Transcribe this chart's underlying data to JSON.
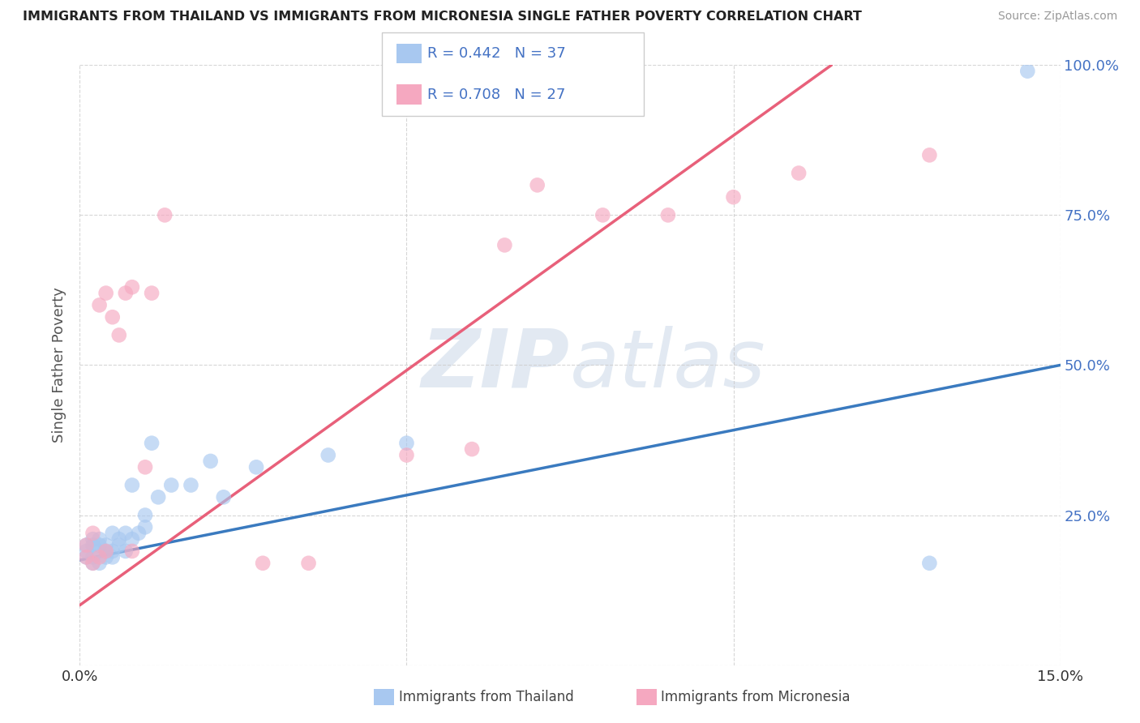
{
  "title": "IMMIGRANTS FROM THAILAND VS IMMIGRANTS FROM MICRONESIA SINGLE FATHER POVERTY CORRELATION CHART",
  "source": "Source: ZipAtlas.com",
  "ylabel": "Single Father Poverty",
  "legend_label1": "Immigrants from Thailand",
  "legend_label2": "Immigrants from Micronesia",
  "r1": 0.442,
  "n1": 37,
  "r2": 0.708,
  "n2": 27,
  "xlim": [
    0,
    0.15
  ],
  "ylim": [
    0,
    1.0
  ],
  "xticks": [
    0.0,
    0.05,
    0.1,
    0.15
  ],
  "yticks": [
    0.0,
    0.25,
    0.5,
    0.75,
    1.0
  ],
  "color_thailand": "#a8c8f0",
  "color_micronesia": "#f5a8c0",
  "color_line_thailand": "#3a7abf",
  "color_line_micronesia": "#e8607a",
  "color_r_value": "#4472C4",
  "background_color": "#ffffff",
  "thailand_x": [
    0.001,
    0.001,
    0.001,
    0.002,
    0.002,
    0.002,
    0.002,
    0.003,
    0.003,
    0.003,
    0.003,
    0.004,
    0.004,
    0.004,
    0.005,
    0.005,
    0.005,
    0.006,
    0.006,
    0.007,
    0.007,
    0.008,
    0.008,
    0.009,
    0.01,
    0.01,
    0.011,
    0.012,
    0.014,
    0.017,
    0.02,
    0.022,
    0.027,
    0.038,
    0.05,
    0.13,
    0.145
  ],
  "thailand_y": [
    0.18,
    0.19,
    0.2,
    0.17,
    0.18,
    0.2,
    0.21,
    0.17,
    0.19,
    0.2,
    0.21,
    0.18,
    0.19,
    0.2,
    0.18,
    0.19,
    0.22,
    0.2,
    0.21,
    0.19,
    0.22,
    0.21,
    0.3,
    0.22,
    0.23,
    0.25,
    0.37,
    0.28,
    0.3,
    0.3,
    0.34,
    0.28,
    0.33,
    0.35,
    0.37,
    0.17,
    0.99
  ],
  "micronesia_x": [
    0.001,
    0.001,
    0.002,
    0.002,
    0.003,
    0.003,
    0.004,
    0.004,
    0.005,
    0.006,
    0.007,
    0.008,
    0.008,
    0.01,
    0.011,
    0.013,
    0.028,
    0.035,
    0.05,
    0.06,
    0.065,
    0.07,
    0.08,
    0.09,
    0.1,
    0.11,
    0.13
  ],
  "micronesia_y": [
    0.18,
    0.2,
    0.17,
    0.22,
    0.18,
    0.6,
    0.19,
    0.62,
    0.58,
    0.55,
    0.62,
    0.19,
    0.63,
    0.33,
    0.62,
    0.75,
    0.17,
    0.17,
    0.35,
    0.36,
    0.7,
    0.8,
    0.75,
    0.75,
    0.78,
    0.82,
    0.85
  ],
  "trendline_th_x0": 0.0,
  "trendline_th_y0": 0.175,
  "trendline_th_x1": 0.15,
  "trendline_th_y1": 0.5,
  "trendline_mc_x0": 0.0,
  "trendline_mc_y0": 0.1,
  "trendline_mc_x1": 0.115,
  "trendline_mc_y1": 1.0
}
